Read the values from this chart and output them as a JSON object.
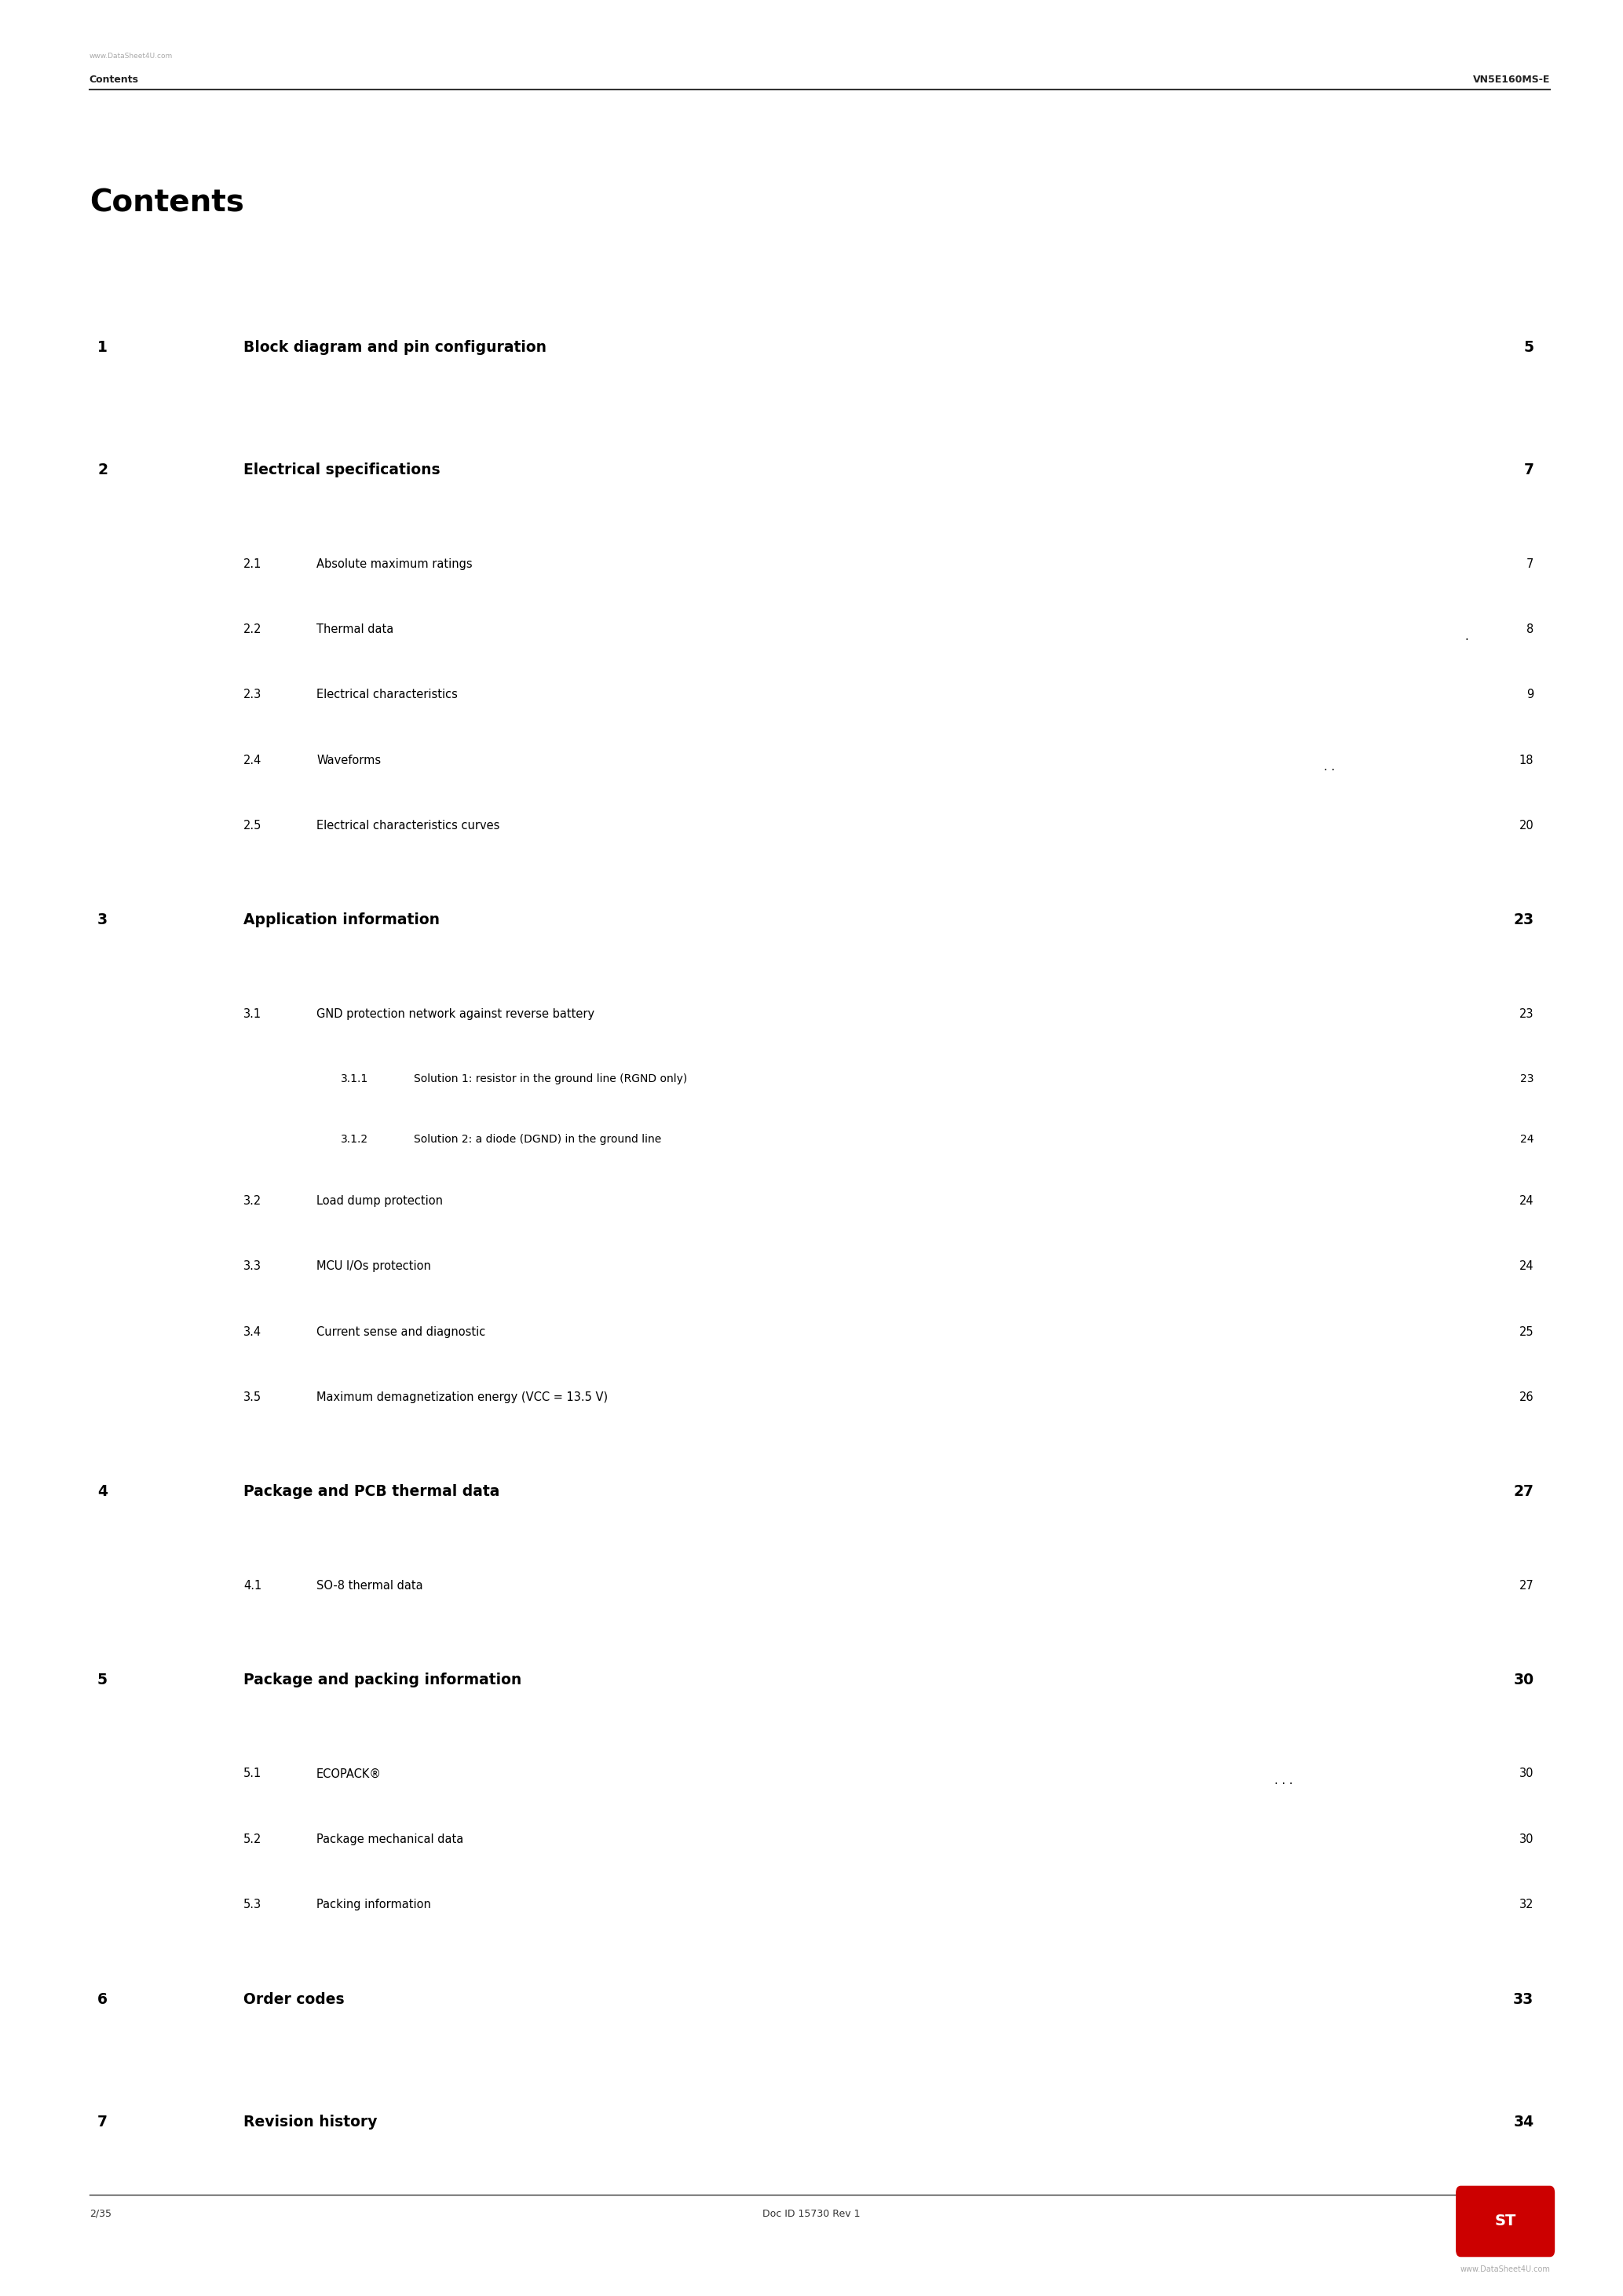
{
  "page_bg": "#ffffff",
  "header_text_left": "Contents",
  "header_text_right": "VN5E160MS-E",
  "watermark_top": "www.DataSheet4U.com",
  "watermark_bottom": "www.DataSheet4U.com",
  "title": "Contents",
  "footer_left": "2/35",
  "footer_center": "Doc ID 15730 Rev 1",
  "toc_entries": [
    {
      "level": 1,
      "num": "1",
      "text": "Block diagram and pin configuration",
      "page": "5"
    },
    {
      "level": 1,
      "num": "2",
      "text": "Electrical specifications",
      "page": "7"
    },
    {
      "level": 2,
      "num": "2.1",
      "text": "Absolute maximum ratings",
      "page": "7"
    },
    {
      "level": 2,
      "num": "2.2",
      "text": "Thermal data",
      "page": "8"
    },
    {
      "level": 2,
      "num": "2.3",
      "text": "Electrical characteristics",
      "page": "9"
    },
    {
      "level": 2,
      "num": "2.4",
      "text": "Waveforms",
      "page": "18"
    },
    {
      "level": 2,
      "num": "2.5",
      "text": "Electrical characteristics curves",
      "page": "20"
    },
    {
      "level": 1,
      "num": "3",
      "text": "Application information",
      "page": "23"
    },
    {
      "level": 2,
      "num": "3.1",
      "text": "GND protection network against reverse battery",
      "page": "23"
    },
    {
      "level": 3,
      "num": "3.1.1",
      "text": "Solution 1: resistor in the ground line (RGND only)",
      "page": "23"
    },
    {
      "level": 3,
      "num": "3.1.2",
      "text": "Solution 2: a diode (DGND) in the ground line",
      "page": "24"
    },
    {
      "level": 2,
      "num": "3.2",
      "text": "Load dump protection",
      "page": "24"
    },
    {
      "level": 2,
      "num": "3.3",
      "text": "MCU I/Os protection",
      "page": "24"
    },
    {
      "level": 2,
      "num": "3.4",
      "text": "Current sense and diagnostic",
      "page": "25"
    },
    {
      "level": 2,
      "num": "3.5",
      "text": "Maximum demagnetization energy (VCC = 13.5 V)",
      "page": "26"
    },
    {
      "level": 1,
      "num": "4",
      "text": "Package and PCB thermal data",
      "page": "27"
    },
    {
      "level": 2,
      "num": "4.1",
      "text": "SO-8 thermal data",
      "page": "27"
    },
    {
      "level": 1,
      "num": "5",
      "text": "Package and packing information",
      "page": "30"
    },
    {
      "level": 2,
      "num": "5.1",
      "text": "ECOPACK®",
      "page": "30"
    },
    {
      "level": 2,
      "num": "5.2",
      "text": "Package mechanical data",
      "page": "30"
    },
    {
      "level": 2,
      "num": "5.3",
      "text": "Packing information",
      "page": "32"
    },
    {
      "level": 1,
      "num": "6",
      "text": "Order codes",
      "page": "33"
    },
    {
      "level": 1,
      "num": "7",
      "text": "Revision history",
      "page": "34"
    }
  ]
}
